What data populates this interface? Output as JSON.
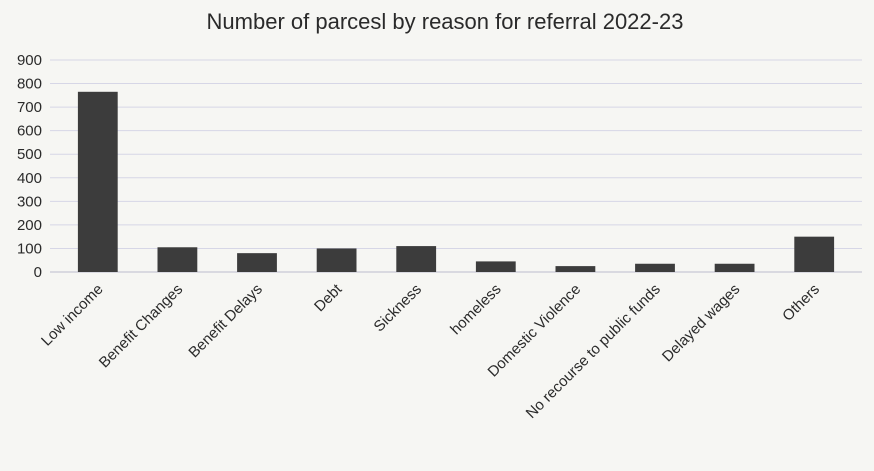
{
  "chart_data": {
    "type": "bar",
    "title": "Number of parcesl by reason for referral 2022-23",
    "xlabel": "",
    "ylabel": "",
    "ylim": [
      0,
      900
    ],
    "yticks": [
      0,
      100,
      200,
      300,
      400,
      500,
      600,
      700,
      800,
      900
    ],
    "grid": true,
    "legend": "none",
    "categories": [
      "Low income",
      "Benefit Changes",
      "Benefit Delays",
      "Debt",
      "Sickness",
      "homeless",
      "Domestic Violence",
      "No recourse to public funds",
      "Delayed wages",
      "Others"
    ],
    "values": [
      765,
      105,
      80,
      100,
      110,
      45,
      25,
      35,
      35,
      150
    ],
    "colors": {
      "bar": "#3c3c3c",
      "grid": "#d6d6e6",
      "background": "#f6f6f3"
    }
  }
}
